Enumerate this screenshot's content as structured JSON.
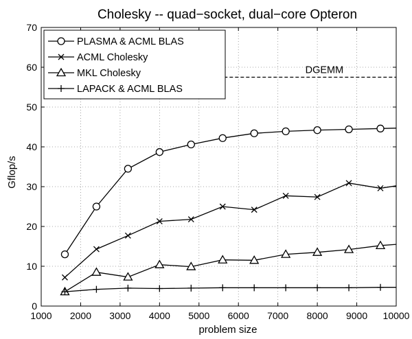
{
  "chart_data": {
    "type": "line",
    "title": "Cholesky -- quad−socket, dual−core Opteron",
    "xlabel": "problem size",
    "ylabel": "Gflop/s",
    "xlim": [
      1000,
      10000
    ],
    "ylim": [
      0,
      70
    ],
    "xticks": [
      1000,
      2000,
      3000,
      4000,
      5000,
      6000,
      7000,
      8000,
      9000,
      10000
    ],
    "yticks": [
      0,
      10,
      20,
      30,
      40,
      50,
      60,
      70
    ],
    "grid": true,
    "legend_position": "top-left",
    "x": [
      1600,
      2400,
      3200,
      4000,
      4800,
      5600,
      6400,
      7200,
      8000,
      8800,
      9600,
      10000
    ],
    "series": [
      {
        "name": "PLASMA & ACML BLAS",
        "marker": "circle",
        "values": [
          13,
          25,
          34.5,
          38.7,
          40.6,
          42.2,
          43.4,
          43.9,
          44.2,
          44.4,
          44.6,
          44.7
        ]
      },
      {
        "name": "ACML Cholesky",
        "marker": "x",
        "values": [
          7.2,
          14.3,
          17.7,
          21.3,
          21.8,
          25,
          24.2,
          27.7,
          27.4,
          30.9,
          29.6,
          30.2
        ]
      },
      {
        "name": "MKL Cholesky",
        "marker": "triangle",
        "values": [
          3.6,
          8.5,
          7.3,
          10.4,
          9.9,
          11.6,
          11.5,
          13,
          13.5,
          14.2,
          15.2,
          15.5
        ]
      },
      {
        "name": "LAPACK & ACML BLAS",
        "marker": "plus",
        "values": [
          3.6,
          4.2,
          4.5,
          4.4,
          4.5,
          4.6,
          4.6,
          4.6,
          4.6,
          4.6,
          4.7,
          4.7
        ]
      }
    ],
    "reference_lines": [
      {
        "label": "DGEMM",
        "y": 57.5,
        "x_from": 4800,
        "x_to": 10000,
        "style": "dashed"
      }
    ]
  }
}
